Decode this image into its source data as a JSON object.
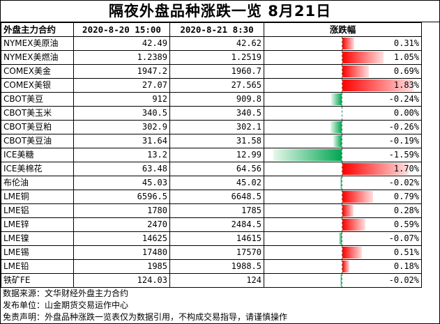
{
  "title": "隔夜外盘品种涨跌一览  8月21日",
  "headers": {
    "name": "外盘主力合约",
    "prev": "2020-8-20  15:00",
    "curr": "2020-8-21  8:30",
    "change": "涨跌幅"
  },
  "rows": [
    {
      "name": "NYMEX美原油",
      "prev": "42.49",
      "curr": "42.62",
      "change": "0.31%",
      "value": 0.31
    },
    {
      "name": "NYMEX美燃油",
      "prev": "1.2389",
      "curr": "1.2519",
      "change": "1.05%",
      "value": 1.05
    },
    {
      "name": "COMEX美金",
      "prev": "1947.2",
      "curr": "1960.7",
      "change": "0.69%",
      "value": 0.69
    },
    {
      "name": "COMEX美银",
      "prev": "27.07",
      "curr": "27.565",
      "change": "1.83%",
      "value": 1.83
    },
    {
      "name": "CBOT美豆",
      "prev": "912",
      "curr": "909.8",
      "change": "-0.24%",
      "value": -0.24
    },
    {
      "name": "CBOT美玉米",
      "prev": "340.5",
      "curr": "340.5",
      "change": "0.00%",
      "value": 0.0
    },
    {
      "name": "CBOT美豆粕",
      "prev": "302.9",
      "curr": "302.1",
      "change": "-0.26%",
      "value": -0.26
    },
    {
      "name": "CBOT美豆油",
      "prev": "31.64",
      "curr": "31.58",
      "change": "-0.19%",
      "value": -0.19
    },
    {
      "name": "ICE美糖",
      "prev": "13.2",
      "curr": "12.99",
      "change": "-1.59%",
      "value": -1.59
    },
    {
      "name": "ICE美棉花",
      "prev": "63.48",
      "curr": "64.56",
      "change": "1.70%",
      "value": 1.7
    },
    {
      "name": "布伦油",
      "prev": "45.03",
      "curr": "45.02",
      "change": "-0.02%",
      "value": -0.02
    },
    {
      "name": "LME铜",
      "prev": "6596.5",
      "curr": "6648.5",
      "change": "0.79%",
      "value": 0.79
    },
    {
      "name": "LME铝",
      "prev": "1780",
      "curr": "1785",
      "change": "0.28%",
      "value": 0.28
    },
    {
      "name": "LME锌",
      "prev": "2470",
      "curr": "2484.5",
      "change": "0.59%",
      "value": 0.59
    },
    {
      "name": "LME镍",
      "prev": "14625",
      "curr": "14615",
      "change": "-0.07%",
      "value": -0.07
    },
    {
      "name": "LME锡",
      "prev": "17480",
      "curr": "17570",
      "change": "0.51%",
      "value": 0.51
    },
    {
      "name": "LME铅",
      "prev": "1985",
      "curr": "1988.5",
      "change": "0.18%",
      "value": 0.18
    },
    {
      "name": "铁矿FE",
      "prev": "124.03",
      "curr": "124",
      "change": "-0.02%",
      "value": -0.02
    }
  ],
  "notes": {
    "source": "数据来源：文华财经外盘主力合约",
    "publisher": "发布单位：山金期货交易运作中心",
    "disclaimer": "免责声明：外盘品种涨跌一览表仅为数据引用，不构成交易指导，请谨慎操作"
  },
  "colors": {
    "positive": "#ff0000",
    "negative": "#00a651"
  },
  "scale_max": 1.83
}
